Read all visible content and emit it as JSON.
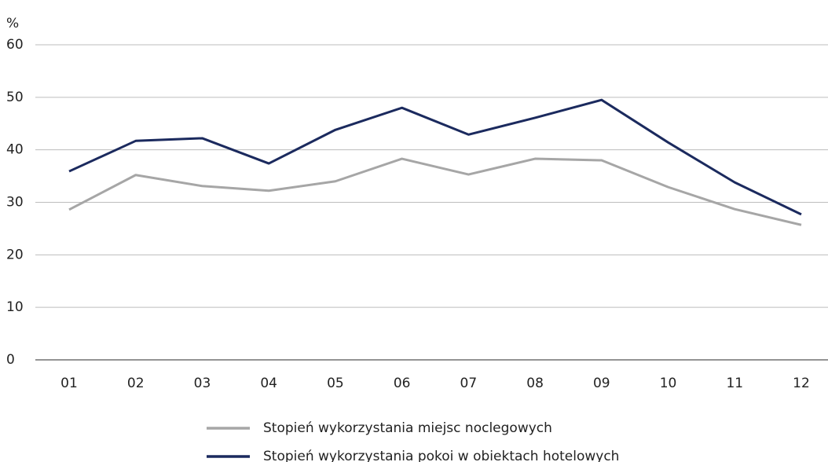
{
  "chart_data": {
    "type": "line",
    "y_label": "%",
    "categories": [
      "01",
      "02",
      "03",
      "04",
      "05",
      "06",
      "07",
      "08",
      "09",
      "10",
      "11",
      "12"
    ],
    "series": [
      {
        "name": "Stopień wykorzystania miejsc noclegowych",
        "color": "#a6a6a6",
        "values": [
          28.6,
          35.2,
          33.1,
          32.2,
          34.0,
          38.3,
          35.3,
          38.3,
          38.0,
          32.9,
          28.7,
          25.7
        ]
      },
      {
        "name": "Stopień wykorzystania pokoi w obiektach hotelowych",
        "color": "#1b2a5e",
        "values": [
          35.9,
          41.7,
          42.2,
          37.4,
          43.8,
          48.0,
          42.9,
          46.1,
          49.5,
          41.4,
          33.8,
          27.7
        ]
      }
    ],
    "ylim": [
      0,
      60
    ],
    "yticks": [
      0,
      10,
      20,
      30,
      40,
      50,
      60
    ],
    "grid": true,
    "legend": "bottom"
  }
}
